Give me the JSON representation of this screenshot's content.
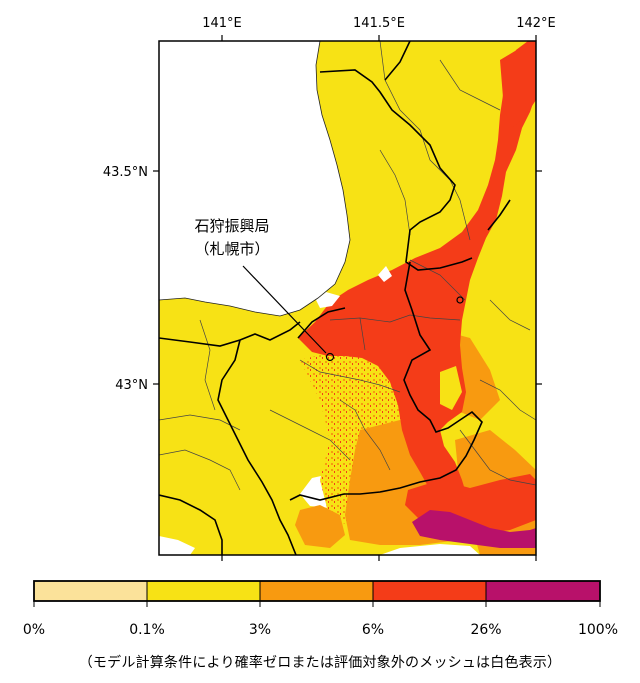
{
  "map": {
    "lon_ticks": [
      "141°E",
      "141.5°E",
      "142°E"
    ],
    "lat_ticks": [
      "43.5°N",
      "43°N"
    ],
    "place_name": "石狩振興局",
    "place_sub": "（札幌市）"
  },
  "legend": {
    "labels": [
      "0%",
      "0.1%",
      "3%",
      "6%",
      "26%",
      "100%"
    ],
    "colors": [
      "#fbe29a",
      "#f7e215",
      "#f89a10",
      "#f43c18",
      "#b8116a"
    ]
  },
  "colors": {
    "very_low": "#fbe29a",
    "low": "#f7e215",
    "medium": "#f89a10",
    "high": "#f43c18",
    "very_high": "#b8116a",
    "sea_or_no_data": "#ffffff"
  },
  "note": "（モデル計算条件により確率ゼロまたは評価対象外のメッシュは白色表示）"
}
